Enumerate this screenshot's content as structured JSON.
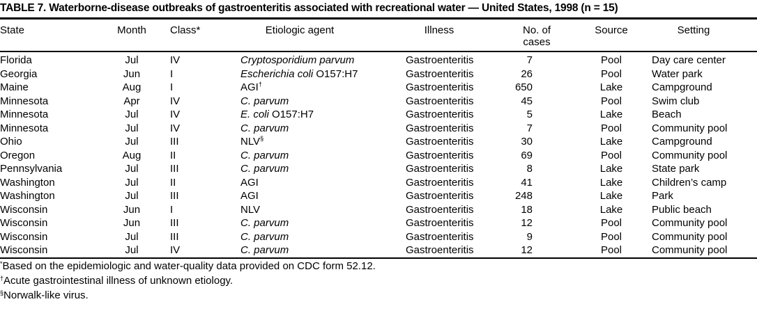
{
  "title": "TABLE 7. Waterborne-disease outbreaks of gastroenteritis associated with recreational water — United States, 1998 (n = 15)",
  "headers": {
    "state": "State",
    "month": "Month",
    "class": "Class*",
    "agent": "Etiologic agent",
    "illness": "Illness",
    "cases_line1": "No. of",
    "cases_line2": "cases",
    "source": "Source",
    "setting": "Setting"
  },
  "rows": [
    {
      "state": "Florida",
      "month": "Jul",
      "class": "IV",
      "agent": {
        "italic": "Cryptosporidium parvum",
        "plain": "",
        "sup": ""
      },
      "illness": "Gastroenteritis",
      "cases": "7",
      "source": "Pool",
      "setting": "Day care center"
    },
    {
      "state": "Georgia",
      "month": "Jun",
      "class": "I",
      "agent": {
        "italic": "Escherichia coli",
        "plain": " O157:H7",
        "sup": ""
      },
      "illness": "Gastroenteritis",
      "cases": "26",
      "source": "Pool",
      "setting": "Water park"
    },
    {
      "state": "Maine",
      "month": "Aug",
      "class": "I",
      "agent": {
        "italic": "",
        "plain": "AGI",
        "sup": "†"
      },
      "illness": "Gastroenteritis",
      "cases": "650",
      "source": "Lake",
      "setting": "Campground"
    },
    {
      "state": "Minnesota",
      "month": "Apr",
      "class": "IV",
      "agent": {
        "italic": "C. parvum",
        "plain": "",
        "sup": ""
      },
      "illness": "Gastroenteritis",
      "cases": "45",
      "source": "Pool",
      "setting": "Swim club"
    },
    {
      "state": "Minnesota",
      "month": "Jul",
      "class": "IV",
      "agent": {
        "italic": "E. coli",
        "plain": " O157:H7",
        "sup": ""
      },
      "illness": "Gastroenteritis",
      "cases": "5",
      "source": "Lake",
      "setting": "Beach"
    },
    {
      "state": "Minnesota",
      "month": "Jul",
      "class": "IV",
      "agent": {
        "italic": "C. parvum",
        "plain": "",
        "sup": ""
      },
      "illness": "Gastroenteritis",
      "cases": "7",
      "source": "Pool",
      "setting": "Community pool"
    },
    {
      "state": "Ohio",
      "month": "Jul",
      "class": "III",
      "agent": {
        "italic": "",
        "plain": "NLV",
        "sup": "§"
      },
      "illness": "Gastroenteritis",
      "cases": "30",
      "source": "Lake",
      "setting": "Campground"
    },
    {
      "state": "Oregon",
      "month": "Aug",
      "class": "II",
      "agent": {
        "italic": "C. parvum",
        "plain": "",
        "sup": ""
      },
      "illness": "Gastroenteritis",
      "cases": "69",
      "source": "Pool",
      "setting": "Community pool"
    },
    {
      "state": "Pennsylvania",
      "month": "Jul",
      "class": "III",
      "agent": {
        "italic": "C. parvum",
        "plain": "",
        "sup": ""
      },
      "illness": "Gastroenteritis",
      "cases": "8",
      "source": "Lake",
      "setting": "State park"
    },
    {
      "state": "Washington",
      "month": "Jul",
      "class": "II",
      "agent": {
        "italic": "",
        "plain": "AGI",
        "sup": ""
      },
      "illness": "Gastroenteritis",
      "cases": "41",
      "source": "Lake",
      "setting": "Children’s camp"
    },
    {
      "state": "Washington",
      "month": "Jul",
      "class": "III",
      "agent": {
        "italic": "",
        "plain": "AGI",
        "sup": ""
      },
      "illness": "Gastroenteritis",
      "cases": "248",
      "source": "Lake",
      "setting": "Park"
    },
    {
      "state": "Wisconsin",
      "month": "Jun",
      "class": "I",
      "agent": {
        "italic": "",
        "plain": "NLV",
        "sup": ""
      },
      "illness": "Gastroenteritis",
      "cases": "18",
      "source": "Lake",
      "setting": "Public beach"
    },
    {
      "state": "Wisconsin",
      "month": "Jun",
      "class": "III",
      "agent": {
        "italic": "C. parvum",
        "plain": "",
        "sup": ""
      },
      "illness": "Gastroenteritis",
      "cases": "12",
      "source": "Pool",
      "setting": "Community pool"
    },
    {
      "state": "Wisconsin",
      "month": "Jul",
      "class": "III",
      "agent": {
        "italic": "C. parvum",
        "plain": "",
        "sup": ""
      },
      "illness": "Gastroenteritis",
      "cases": "9",
      "source": "Pool",
      "setting": "Community pool"
    },
    {
      "state": "Wisconsin",
      "month": "Jul",
      "class": "IV",
      "agent": {
        "italic": "C. parvum",
        "plain": "",
        "sup": ""
      },
      "illness": "Gastroenteritis",
      "cases": "12",
      "source": "Pool",
      "setting": "Community pool"
    }
  ],
  "footnotes": [
    {
      "mark": "*",
      "text": "Based on the epidemiologic and water-quality data provided on CDC form 52.12."
    },
    {
      "mark": "†",
      "text": "Acute gastrointestinal illness of unknown etiology."
    },
    {
      "mark": "§",
      "text": "Norwalk-like virus."
    }
  ]
}
